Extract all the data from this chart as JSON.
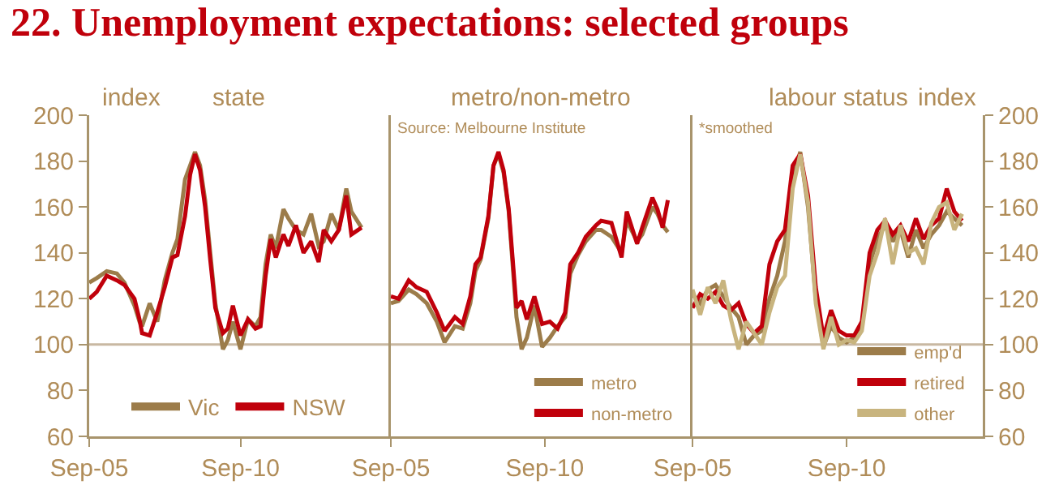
{
  "chart_data": [
    {
      "type": "line",
      "title": "22. Unemployment expectations: selected groups",
      "subtitle": "state",
      "ylabel": "index",
      "x": [
        "2005-09",
        "2005-12",
        "2006-04",
        "2006-08",
        "2006-11",
        "2007-03",
        "2007-05",
        "2007-06",
        "2007-09",
        "2007-12",
        "2008-03",
        "2008-06",
        "2008-08",
        "2008-11",
        "2009-01",
        "2009-03",
        "2009-05",
        "2009-07",
        "2009-09",
        "2009-11",
        "2010-02",
        "2010-04",
        "2010-06",
        "2010-09",
        "2010-12",
        "2011-03",
        "2011-05",
        "2011-07",
        "2011-09",
        "2011-11",
        "2012-02",
        "2012-04",
        "2012-07",
        "2012-10",
        "2013-01",
        "2013-04",
        "2013-06",
        "2013-09",
        "2013-12",
        "2014-03",
        "2014-05",
        "2014-09"
      ],
      "series": [
        {
          "name": "Vic",
          "color": "#9c7c4a",
          "values": [
            127,
            129,
            132,
            131,
            127,
            117,
            110,
            108,
            118,
            110,
            128,
            140,
            146,
            172,
            178,
            184,
            178,
            163,
            140,
            118,
            98,
            102,
            110,
            98,
            111,
            108,
            112,
            135,
            148,
            142,
            159,
            155,
            150,
            148,
            157,
            143,
            145,
            157,
            150,
            168,
            158,
            151
          ]
        },
        {
          "name": "NSW",
          "color": "#c0000b",
          "values": [
            120,
            123,
            130,
            128,
            126,
            120,
            111,
            105,
            104,
            114,
            125,
            138,
            139,
            156,
            174,
            183,
            176,
            160,
            137,
            116,
            105,
            107,
            117,
            104,
            111,
            107,
            108,
            130,
            146,
            138,
            148,
            143,
            152,
            140,
            145,
            136,
            150,
            145,
            150,
            165,
            148,
            151
          ]
        }
      ],
      "xlim": [
        "2005-09",
        "2015-08"
      ],
      "xticks": [
        {
          "value": "2005-09",
          "label": "Sep-05"
        },
        {
          "value": "2010-09",
          "label": "Sep-10"
        }
      ],
      "ylim": [
        60,
        200
      ],
      "yticks": [
        60,
        80,
        100,
        120,
        140,
        160,
        180,
        200
      ],
      "ref_lines": [
        {
          "axis": "y",
          "value": 100,
          "color": "#c8b8a2"
        }
      ],
      "legend": "bottom",
      "grid": false
    },
    {
      "type": "line",
      "subtitle": "metro/non-metro",
      "annotations": [
        "Source: Melbourne Institute"
      ],
      "x": [
        "2005-09",
        "2005-12",
        "2006-04",
        "2006-07",
        "2006-11",
        "2007-03",
        "2007-06",
        "2007-10",
        "2008-01",
        "2008-04",
        "2008-06",
        "2008-08",
        "2008-11",
        "2009-01",
        "2009-03",
        "2009-05",
        "2009-07",
        "2009-10",
        "2009-12",
        "2010-02",
        "2010-05",
        "2010-08",
        "2010-11",
        "2011-02",
        "2011-05",
        "2011-07",
        "2011-10",
        "2012-01",
        "2012-05",
        "2012-07",
        "2012-11",
        "2013-03",
        "2013-05",
        "2013-09",
        "2013-11",
        "2014-03",
        "2014-05",
        "2014-07",
        "2014-09"
      ],
      "series": [
        {
          "name": "metro",
          "color": "#9c7c4a",
          "values": [
            118,
            119,
            124,
            122,
            118,
            110,
            101,
            108,
            107,
            118,
            132,
            137,
            155,
            178,
            183,
            175,
            158,
            112,
            98,
            103,
            117,
            99,
            103,
            108,
            112,
            131,
            139,
            145,
            150,
            150,
            147,
            140,
            154,
            145,
            148,
            160,
            157,
            152,
            149
          ]
        },
        {
          "name": "non-metro",
          "color": "#c0000b",
          "values": [
            121,
            120,
            128,
            125,
            123,
            114,
            106,
            112,
            109,
            121,
            135,
            138,
            156,
            178,
            184,
            176,
            159,
            116,
            119,
            111,
            121,
            109,
            110,
            107,
            114,
            135,
            140,
            147,
            152,
            154,
            153,
            138,
            158,
            144,
            151,
            164,
            159,
            151,
            163
          ]
        }
      ],
      "xlim": [
        "2005-09",
        "2015-06"
      ],
      "xticks": [
        {
          "value": "2005-09",
          "label": "Sep-05"
        },
        {
          "value": "2010-09",
          "label": "Sep-10"
        }
      ],
      "ylim": [
        60,
        200
      ],
      "yticks": [
        60,
        80,
        100,
        120,
        140,
        160,
        180,
        200
      ],
      "tick_labels": "x",
      "ref_lines": [
        {
          "axis": "y",
          "value": 100,
          "color": "#c8b8a2"
        }
      ],
      "legend": "bottom",
      "grid": false
    },
    {
      "type": "line",
      "subtitle": "labour status",
      "ylabel": "index",
      "annotations": [
        "*smoothed"
      ],
      "x": [
        "2005-09",
        "2005-12",
        "2006-03",
        "2006-06",
        "2006-09",
        "2006-12",
        "2007-03",
        "2007-06",
        "2007-09",
        "2007-12",
        "2008-03",
        "2008-06",
        "2008-09",
        "2008-12",
        "2009-03",
        "2009-06",
        "2009-09",
        "2009-12",
        "2010-03",
        "2010-06",
        "2010-09",
        "2010-12",
        "2011-03",
        "2011-06",
        "2011-09",
        "2011-12",
        "2012-03",
        "2012-06",
        "2012-09",
        "2012-12",
        "2013-03",
        "2013-06",
        "2013-09",
        "2013-12",
        "2014-03",
        "2014-06"
      ],
      "series": [
        {
          "name": "emp'd",
          "color": "#9c7c4a",
          "values": [
            122,
            118,
            124,
            126,
            121,
            116,
            112,
            100,
            104,
            106,
            120,
            130,
            145,
            172,
            184,
            160,
            120,
            99,
            108,
            103,
            101,
            103,
            108,
            135,
            146,
            152,
            145,
            150,
            138,
            150,
            142,
            148,
            152,
            158,
            155,
            152
          ]
        },
        {
          "name": "retired",
          "color": "#c0000b",
          "values": [
            116,
            122,
            120,
            123,
            117,
            115,
            118,
            109,
            105,
            108,
            135,
            145,
            150,
            178,
            183,
            165,
            125,
            103,
            115,
            106,
            104,
            104,
            110,
            140,
            150,
            154,
            148,
            152,
            145,
            155,
            146,
            152,
            155,
            168,
            158,
            154
          ]
        },
        {
          "name": "other",
          "color": "#c8b47e",
          "values": [
            124,
            113,
            125,
            118,
            128,
            111,
            98,
            110,
            105,
            100,
            114,
            125,
            130,
            168,
            183,
            162,
            118,
            98,
            112,
            100,
            102,
            101,
            106,
            130,
            140,
            155,
            135,
            152,
            140,
            142,
            135,
            153,
            160,
            162,
            150,
            157
          ]
        }
      ],
      "xlim": [
        "2005-09",
        "2015-02"
      ],
      "xticks": [
        {
          "value": "2005-09",
          "label": "Sep-05"
        },
        {
          "value": "2010-09",
          "label": "Sep-10"
        }
      ],
      "ylim": [
        60,
        200
      ],
      "yticks": [
        60,
        80,
        100,
        120,
        140,
        160,
        180,
        200
      ],
      "ref_lines": [
        {
          "axis": "y",
          "value": 100,
          "color": "#c8b8a2"
        }
      ],
      "legend": "bottom",
      "grid": false
    }
  ]
}
